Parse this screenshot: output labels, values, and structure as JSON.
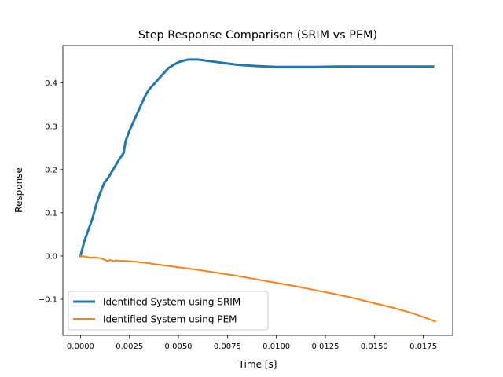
{
  "chart_data": {
    "type": "line",
    "title": "Step Response Comparison (SRIM vs PEM)",
    "xlabel": "Time [s]",
    "ylabel": "Response",
    "xlim": [
      -0.0009,
      0.019
    ],
    "ylim": [
      -0.1835,
      0.4865
    ],
    "x_ticks": [
      0.0,
      0.0025,
      0.005,
      0.0075,
      0.01,
      0.0125,
      0.015,
      0.0175
    ],
    "x_tick_labels": [
      "0.0000",
      "0.0025",
      "0.0050",
      "0.0075",
      "0.0100",
      "0.0125",
      "0.0150",
      "0.0175"
    ],
    "y_ticks": [
      -0.1,
      0.0,
      0.1,
      0.2,
      0.3,
      0.4
    ],
    "y_tick_labels": [
      "−0.1",
      "0.0",
      "0.1",
      "0.2",
      "0.3",
      "0.4"
    ],
    "grid": false,
    "legend_position": "lower-left",
    "series": [
      {
        "name": "Identified System using SRIM",
        "color": "#1f77b4",
        "x": [
          0.0,
          0.0002,
          0.0004,
          0.0006,
          0.0008,
          0.001,
          0.0012,
          0.0014,
          0.0016,
          0.0018,
          0.002,
          0.0022,
          0.0023,
          0.0025,
          0.0027,
          0.003,
          0.0033,
          0.0035,
          0.0038,
          0.004,
          0.0043,
          0.0045,
          0.0048,
          0.005,
          0.0053,
          0.0055,
          0.006,
          0.0065,
          0.007,
          0.0075,
          0.008,
          0.009,
          0.01,
          0.011,
          0.012,
          0.013,
          0.014,
          0.015,
          0.016,
          0.017,
          0.018
        ],
        "y": [
          0.0,
          0.035,
          0.06,
          0.085,
          0.118,
          0.145,
          0.168,
          0.18,
          0.195,
          0.21,
          0.225,
          0.238,
          0.265,
          0.29,
          0.31,
          0.34,
          0.37,
          0.385,
          0.4,
          0.41,
          0.425,
          0.435,
          0.443,
          0.448,
          0.452,
          0.454,
          0.454,
          0.451,
          0.448,
          0.445,
          0.442,
          0.439,
          0.437,
          0.437,
          0.437,
          0.438,
          0.438,
          0.438,
          0.438,
          0.438,
          0.438
        ]
      },
      {
        "name": "Identified System using PEM",
        "color": "#ff7f0e",
        "x": [
          0.0,
          0.0003,
          0.0005,
          0.0007,
          0.001,
          0.0012,
          0.0014,
          0.0015,
          0.0017,
          0.0018,
          0.002,
          0.0025,
          0.003,
          0.0035,
          0.004,
          0.005,
          0.006,
          0.007,
          0.008,
          0.009,
          0.01,
          0.011,
          0.012,
          0.013,
          0.014,
          0.015,
          0.016,
          0.017,
          0.0181
        ],
        "y": [
          0.0,
          -0.002,
          -0.004,
          -0.003,
          -0.005,
          -0.008,
          -0.012,
          -0.009,
          -0.012,
          -0.01,
          -0.011,
          -0.012,
          -0.014,
          -0.017,
          -0.02,
          -0.026,
          -0.032,
          -0.039,
          -0.046,
          -0.054,
          -0.062,
          -0.07,
          -0.079,
          -0.088,
          -0.098,
          -0.109,
          -0.12,
          -0.133,
          -0.151
        ]
      }
    ]
  }
}
